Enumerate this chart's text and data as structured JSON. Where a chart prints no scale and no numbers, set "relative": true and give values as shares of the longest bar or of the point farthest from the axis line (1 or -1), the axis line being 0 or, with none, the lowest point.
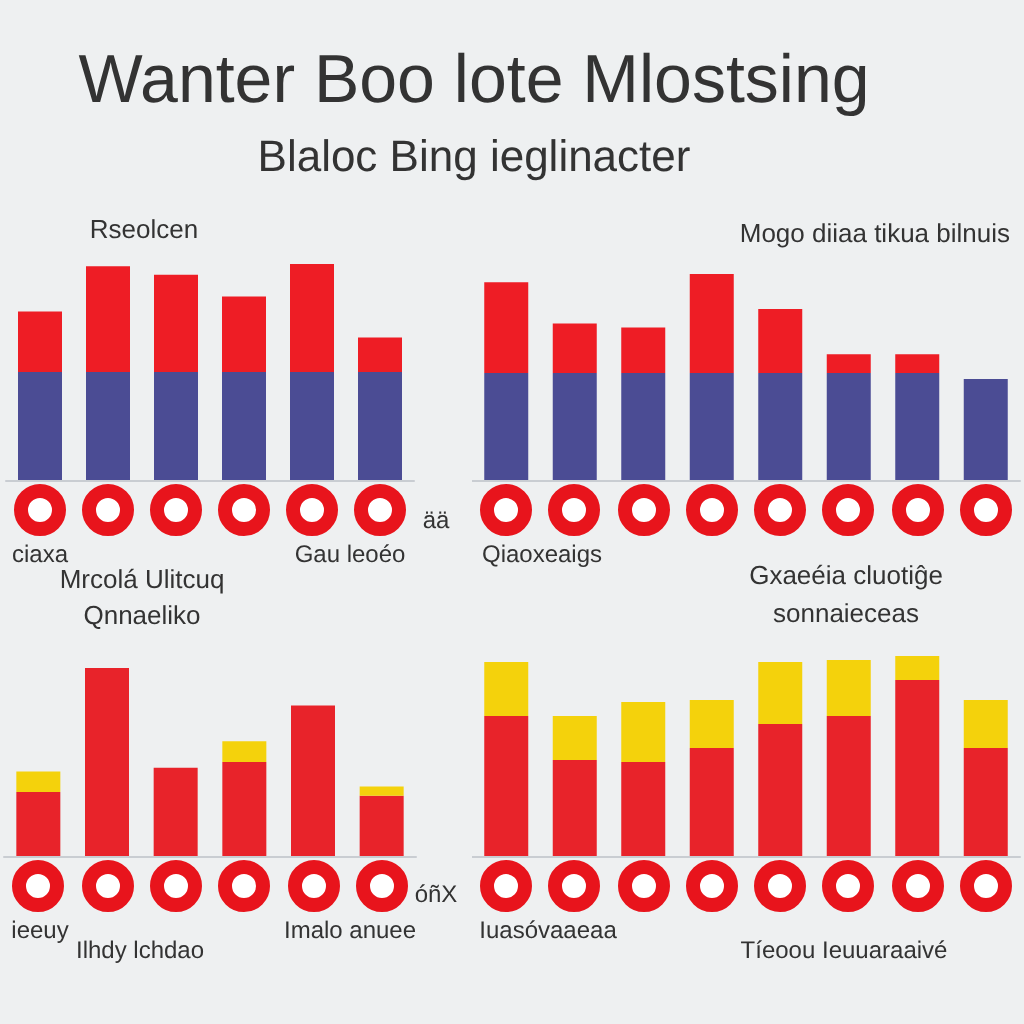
{
  "chart_data": [
    {
      "type": "other",
      "title": "Wanter Boo lote Mlostsing",
      "subtitle": "Blaloc Bing ieglinacter"
    },
    {
      "type": "bar",
      "title": "Rseolcen",
      "annotations": [
        "ciaxa",
        "Gau leoéo",
        "ää"
      ],
      "categories": [
        null,
        null,
        null,
        null,
        null,
        null
      ],
      "relative": true,
      "stacked": true,
      "series": [
        {
          "color": "#4b4c94",
          "values": [
            0.5,
            0.5,
            0.5,
            0.5,
            0.5,
            0.5
          ]
        },
        {
          "color": "#ee1d25",
          "values": [
            0.28,
            0.49,
            0.45,
            0.35,
            0.5,
            0.16
          ]
        }
      ]
    },
    {
      "type": "bar",
      "title": "Mogo diiaa tikua bilnuis",
      "annotations": [
        "Qiaoxeaigs"
      ],
      "categories": [
        null,
        null,
        null,
        null,
        null,
        null,
        null,
        null
      ],
      "relative": true,
      "stacked": true,
      "series": [
        {
          "color": "#4b4c94",
          "values": [
            0.52,
            0.52,
            0.52,
            0.52,
            0.52,
            0.52,
            0.52,
            0.49
          ]
        },
        {
          "color": "#ee1d25",
          "values": [
            0.44,
            0.24,
            0.22,
            0.48,
            0.31,
            0.09,
            0.09,
            0
          ]
        }
      ]
    },
    {
      "type": "bar",
      "title": "Mrcolá Ulitcuq",
      "subtitle": "Qnnaeliko",
      "annotations": [
        "ieeuy",
        "Ilhdy lchdao",
        "Imalo anuee",
        "óñX"
      ],
      "categories": [
        null,
        null,
        null,
        null,
        null,
        null
      ],
      "relative": true,
      "stacked": true,
      "series": [
        {
          "color": "#e8232a",
          "values": [
            0.34,
            1,
            0.47,
            0.5,
            0.8,
            0.32
          ]
        },
        {
          "color": "#f4d20c",
          "values": [
            0.11,
            0,
            0,
            0.11,
            0,
            0.05
          ]
        }
      ]
    },
    {
      "type": "bar",
      "title": "Gxaeéia cluotiĝe",
      "subtitle": "sonnaieceas",
      "annotations": [
        "Iuasóvaaeaa",
        "Tíeoou Ieuuaraaivé"
      ],
      "categories": [
        null,
        null,
        null,
        null,
        null,
        null,
        null,
        null
      ],
      "relative": true,
      "stacked": true,
      "series": [
        {
          "color": "#e8232a",
          "values": [
            0.7,
            0.48,
            0.47,
            0.54,
            0.66,
            0.7,
            0.88,
            0.54
          ]
        },
        {
          "color": "#f4d20c",
          "values": [
            0.27,
            0.22,
            0.3,
            0.24,
            0.31,
            0.28,
            0.12,
            0.24
          ]
        }
      ]
    }
  ]
}
